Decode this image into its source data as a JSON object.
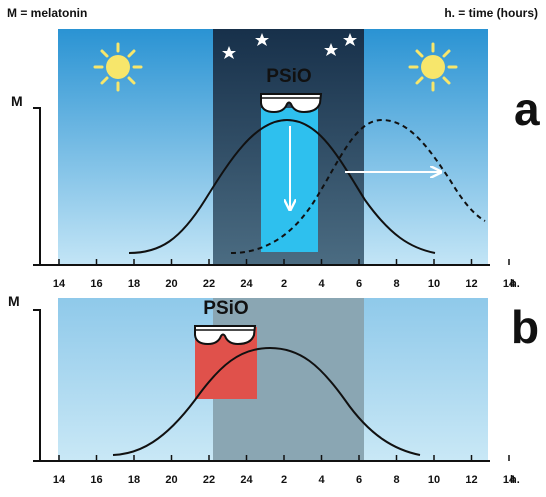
{
  "header": {
    "left": "M = melatonin",
    "right": "h. = time (hours)"
  },
  "panel_a": {
    "letter": "a",
    "axis_label": "M",
    "brand": "PSiO",
    "unit": "h.",
    "ticks": [
      "14",
      "16",
      "18",
      "20",
      "22",
      "24",
      "2",
      "4",
      "6",
      "8",
      "10",
      "12",
      "14"
    ]
  },
  "panel_b": {
    "letter": "b",
    "axis_label": "M",
    "brand": "PSiO",
    "unit": "h.",
    "ticks": [
      "14",
      "16",
      "18",
      "20",
      "22",
      "24",
      "2",
      "4",
      "6",
      "8",
      "10",
      "12",
      "14"
    ]
  },
  "icons": {
    "sun": "sun-icon",
    "moon": "crescent-moon-icon",
    "star": "star-icon",
    "glasses": "glasses-icon",
    "arrow": "arrow-icon"
  },
  "colors": {
    "sky_light": "#bfe4f5",
    "sky_dark": "#2a93d3",
    "night": "#1d3a55",
    "blue_light": "#2ec0ee",
    "red_light": "#e0514b",
    "sun": "#f7e66b"
  }
}
